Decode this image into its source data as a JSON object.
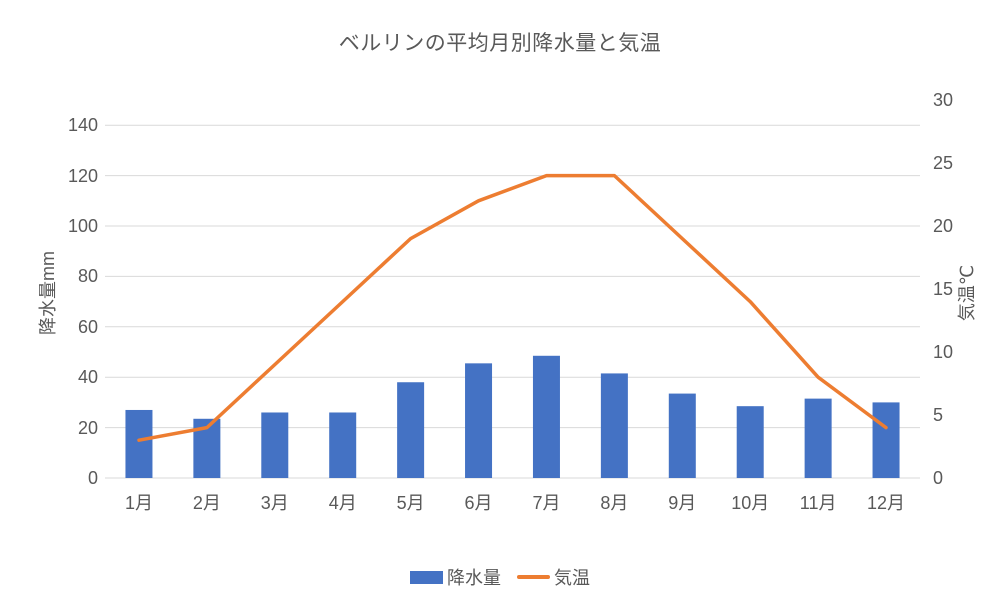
{
  "colors": {
    "background": "#FFFFFF",
    "text": "#595959",
    "gridline": "#D9D9D9",
    "bar": "#4472C4",
    "line": "#ED7D31"
  },
  "chart_data": {
    "type": "bar",
    "subtype": "combo-bar-line-dual-axis",
    "title": "ベルリンの平均月別降水量と気温",
    "categories": [
      "1月",
      "2月",
      "3月",
      "4月",
      "5月",
      "6月",
      "7月",
      "8月",
      "9月",
      "10月",
      "11月",
      "12月"
    ],
    "series": [
      {
        "name": "降水量",
        "type": "bar",
        "axis": "left",
        "color": "#4472C4",
        "values": [
          27,
          23.5,
          26,
          26,
          38,
          45.5,
          48.5,
          41.5,
          33.5,
          28.5,
          31.5,
          30
        ]
      },
      {
        "name": "気温",
        "type": "line",
        "axis": "right",
        "color": "#ED7D31",
        "values": [
          3,
          4,
          9,
          14,
          19,
          22,
          24,
          24,
          19,
          14,
          8,
          4
        ]
      }
    ],
    "left_axis": {
      "label": "降水量mm",
      "min": 0,
      "max": 150,
      "ticks": [
        0,
        20,
        40,
        60,
        80,
        100,
        120,
        140
      ]
    },
    "right_axis": {
      "label": "気温℃",
      "min": 0,
      "max": 30,
      "ticks": [
        0,
        5,
        10,
        15,
        20,
        25,
        30
      ]
    },
    "grid": true,
    "legend_position": "bottom"
  },
  "legend": {
    "precip_label": "降水量",
    "temp_label": "気温"
  }
}
